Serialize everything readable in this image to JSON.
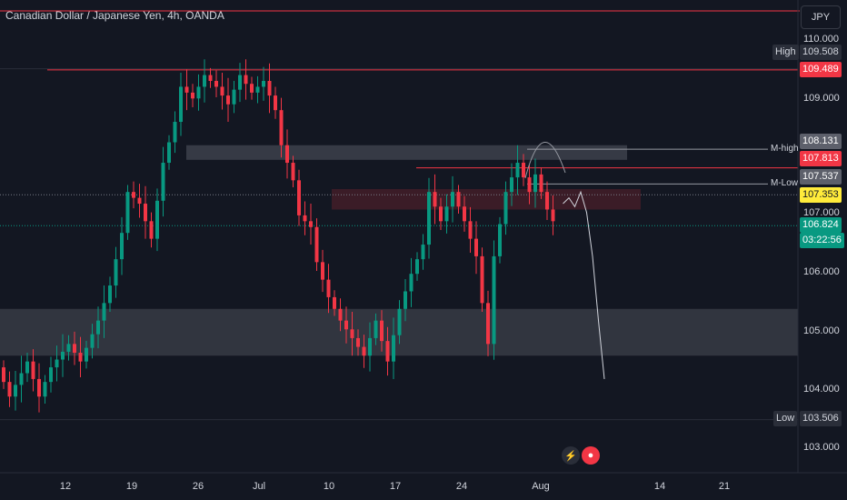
{
  "header": {
    "title": "Canadian Dollar / Japanese Yen, 4h, OANDA",
    "currency_button": "JPY"
  },
  "price_axis": {
    "ticks": [
      "110.000",
      "109.000",
      "107.000",
      "106.000",
      "105.000",
      "104.000",
      "103.000"
    ]
  },
  "time_axis": {
    "ticks": [
      "12",
      "19",
      "26",
      "Jul",
      "10",
      "17",
      "24",
      "Aug",
      "14",
      "21"
    ]
  },
  "tags": {
    "high_label": "High",
    "high_value": "109.508",
    "red_level": "109.489",
    "m_high_value": "108.131",
    "m_high_label": "M-high",
    "level_107813": "107.813",
    "m_low_value": "107.537",
    "m_low_label": "M-Low",
    "yellow_level": "107.353",
    "last_price": "106.824",
    "countdown": "03:22:56",
    "low_label": "Low",
    "low_value": "103.506"
  },
  "chart_data": {
    "type": "candlestick",
    "title": "Canadian Dollar / Japanese Yen, 4h, OANDA",
    "symbol": "CADJPY",
    "timeframe": "4h",
    "source": "OANDA",
    "ylim": [
      102.6,
      110.2
    ],
    "x_ticks": [
      "12",
      "19",
      "26",
      "Jul",
      "10",
      "17",
      "24",
      "Aug",
      "14",
      "21"
    ],
    "y_ticks": [
      110.0,
      109.0,
      107.0,
      106.0,
      105.0,
      104.0,
      103.0
    ],
    "price_path": [
      [
        0,
        104.4
      ],
      [
        2,
        103.9
      ],
      [
        5,
        104.5
      ],
      [
        7,
        103.9
      ],
      [
        9,
        104.4
      ],
      [
        12,
        104.8
      ],
      [
        14,
        104.5
      ],
      [
        17,
        105.2
      ],
      [
        19,
        105.8
      ],
      [
        21,
        106.7
      ],
      [
        22,
        107.4
      ],
      [
        24,
        107.2
      ],
      [
        26,
        106.6
      ],
      [
        28,
        107.9
      ],
      [
        30,
        108.6
      ],
      [
        31,
        109.2
      ],
      [
        33,
        109.0
      ],
      [
        35,
        109.4
      ],
      [
        37,
        109.2
      ],
      [
        39,
        108.9
      ],
      [
        41,
        109.4
      ],
      [
        43,
        109.1
      ],
      [
        45,
        109.3
      ],
      [
        47,
        108.8
      ],
      [
        48,
        108.2
      ],
      [
        50,
        107.6
      ],
      [
        51,
        107.0
      ],
      [
        53,
        106.8
      ],
      [
        54,
        106.2
      ],
      [
        56,
        105.6
      ],
      [
        58,
        105.2
      ],
      [
        60,
        104.9
      ],
      [
        62,
        104.6
      ],
      [
        64,
        105.2
      ],
      [
        66,
        104.5
      ],
      [
        68,
        105.4
      ],
      [
        70,
        106.0
      ],
      [
        72,
        106.5
      ],
      [
        73,
        107.4
      ],
      [
        75,
        106.9
      ],
      [
        77,
        107.4
      ],
      [
        79,
        106.9
      ],
      [
        81,
        106.3
      ],
      [
        82,
        105.5
      ],
      [
        83,
        104.8
      ],
      [
        84,
        106.3
      ],
      [
        86,
        107.4
      ],
      [
        88,
        107.9
      ],
      [
        90,
        107.4
      ],
      [
        91,
        107.7
      ],
      [
        93,
        107.1
      ],
      [
        94,
        106.9
      ]
    ],
    "horizontal_lines": [
      {
        "label": "High",
        "value": 109.508
      },
      {
        "value": 109.489
      },
      {
        "label": "M-high",
        "value": 108.131
      },
      {
        "value": 107.813
      },
      {
        "label": "M-Low",
        "value": 107.537
      },
      {
        "value": 107.353
      },
      {
        "value": 106.824
      },
      {
        "label": "Low",
        "value": 103.506
      }
    ],
    "zones": [
      {
        "from": 107.95,
        "to": 108.2
      },
      {
        "from": 107.1,
        "to": 107.45
      },
      {
        "from": 104.6,
        "to": 105.4
      }
    ],
    "projection_path": [
      [
        95,
        107.2
      ],
      [
        96,
        107.3
      ],
      [
        97,
        107.15
      ],
      [
        98,
        107.4
      ],
      [
        99,
        107.05
      ],
      [
        100,
        106.3
      ],
      [
        101,
        105.2
      ],
      [
        102,
        104.2
      ]
    ]
  }
}
